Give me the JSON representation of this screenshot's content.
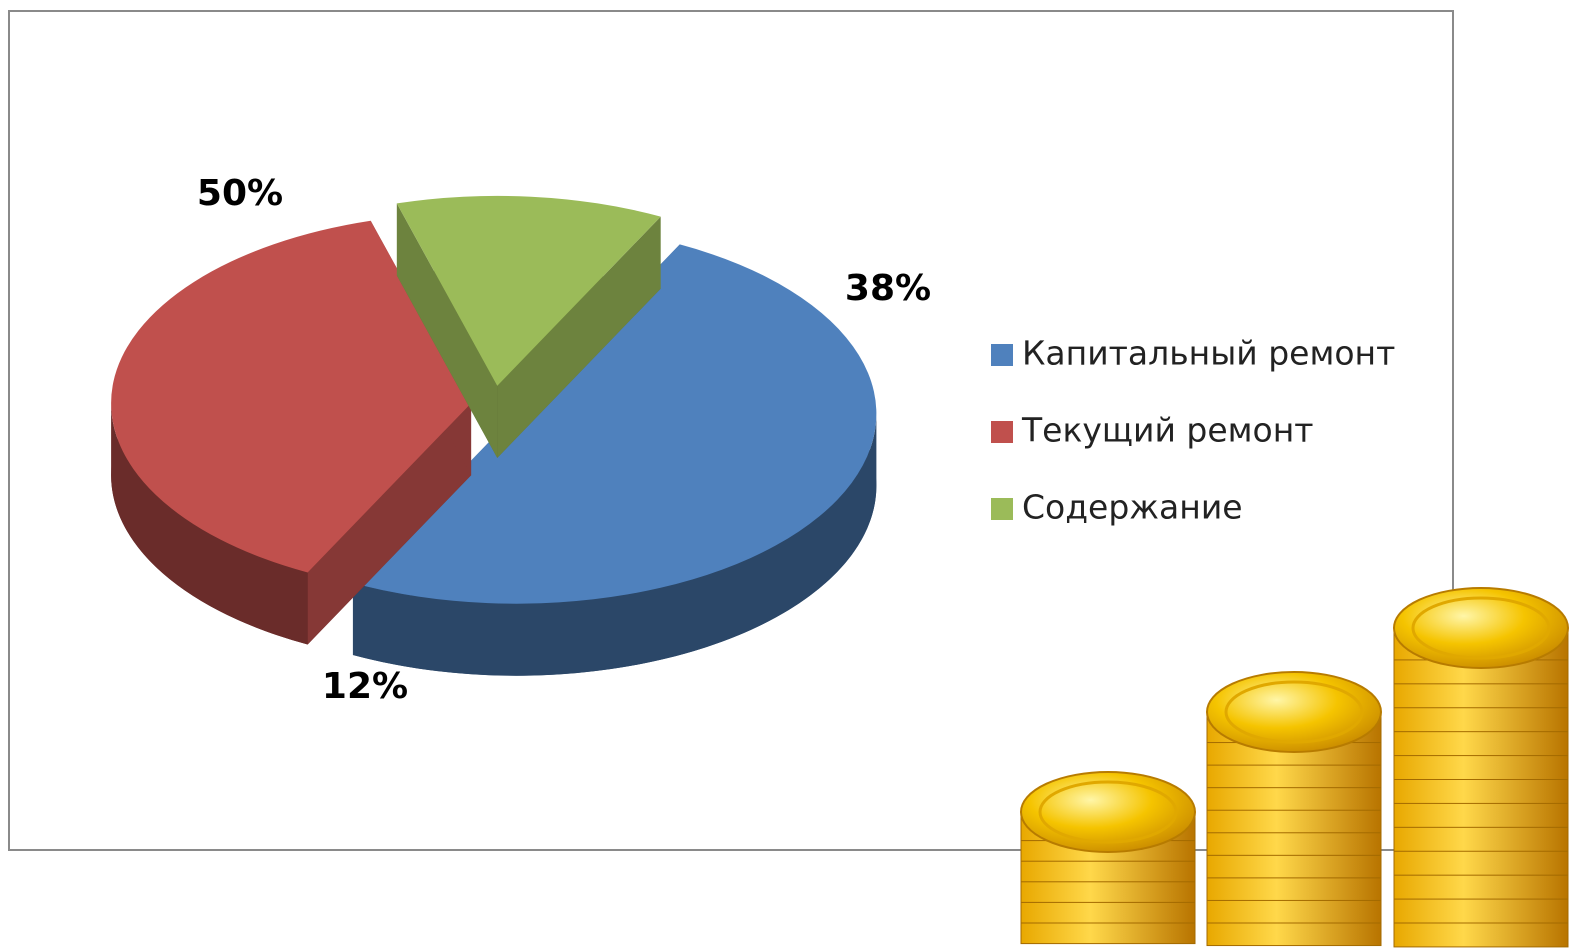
{
  "chart_data": {
    "type": "pie",
    "categories": [
      "Капитальный ремонт",
      "Текущий ремонт",
      "Содержание"
    ],
    "values": [
      50,
      38,
      12
    ],
    "value_labels": [
      "50%",
      "38%",
      "12%"
    ],
    "colors": [
      "#4f81bd",
      "#c0504d",
      "#9bbb59"
    ],
    "legend": "right"
  }
}
